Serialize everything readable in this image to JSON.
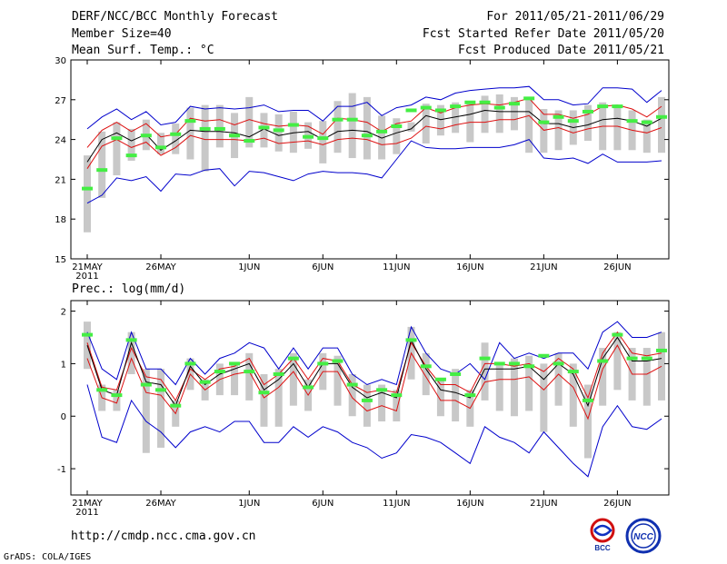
{
  "header": {
    "title": "DERF/NCC/BCC Monthly Forecast",
    "member_size": "Member Size=40",
    "variable": "Mean Surf. Temp.: °C",
    "period": "For 2011/05/21-2011/06/29",
    "start_date": "Fcst Started Refer Date 2011/05/20",
    "produced_date": "Fcst Produced Date 2011/05/21"
  },
  "panel2_label": "Prec.: log(mm/d)",
  "url": "http://cmdp.ncc.cma.gov.cn",
  "footer": "GrADS: COLA/IGES",
  "logos": {
    "bcc": "BCC",
    "ncc": "NCC"
  },
  "colors": {
    "box": "#c8c8c8",
    "obs": "#44ee44",
    "mean": "#000000",
    "inner": "#dd1111",
    "outer": "#0000cc"
  },
  "chart_data": [
    {
      "type": "line",
      "title": "Mean Surf. Temp.: °C",
      "xlabel": "",
      "ylabel": "",
      "ylim": [
        15,
        30
      ],
      "yticks": [
        "15",
        "18",
        "21",
        "24",
        "27",
        "30"
      ],
      "xticks": [
        {
          "label": "21MAY",
          "sub": "2011",
          "day": 1
        },
        {
          "label": "26MAY",
          "sub": "",
          "day": 6
        },
        {
          "label": "1JUN",
          "sub": "",
          "day": 12
        },
        {
          "label": "6JUN",
          "sub": "",
          "day": 17
        },
        {
          "label": "11JUN",
          "sub": "",
          "day": 22
        },
        {
          "label": "16JUN",
          "sub": "",
          "day": 27
        },
        {
          "label": "21JUN",
          "sub": "",
          "day": 32
        },
        {
          "label": "26JUN",
          "sub": "",
          "day": 37
        }
      ],
      "days": 40,
      "series": [
        {
          "name": "max",
          "values": [
            24.8,
            25.7,
            26.3,
            25.5,
            26.1,
            25.1,
            25.3,
            26.5,
            26.3,
            26.4,
            26.3,
            26.4,
            26.6,
            26.1,
            26.2,
            26.2,
            25.4,
            26.5,
            26.5,
            26.8,
            25.8,
            26.4,
            26.6,
            27.2,
            27.0,
            27.5,
            27.7,
            27.8,
            27.9,
            27.9,
            28.0,
            27.0,
            27.0,
            26.6,
            26.7,
            27.9,
            27.9,
            27.8,
            26.8,
            27.7
          ]
        },
        {
          "name": "upper",
          "values": [
            23.4,
            24.7,
            25.3,
            24.6,
            25.2,
            24.2,
            24.4,
            25.6,
            25.4,
            25.5,
            25.1,
            25.5,
            25.2,
            25.0,
            25.1,
            25.0,
            24.4,
            25.6,
            25.5,
            25.3,
            24.6,
            25.2,
            25.4,
            26.4,
            26.0,
            26.4,
            26.6,
            26.7,
            26.6,
            26.8,
            27.1,
            25.9,
            25.9,
            25.6,
            25.9,
            26.5,
            26.6,
            26.3,
            25.7,
            26.5
          ]
        },
        {
          "name": "mean",
          "values": [
            22.3,
            24.0,
            24.5,
            23.9,
            24.4,
            23.2,
            23.9,
            24.7,
            24.6,
            24.6,
            24.5,
            24.2,
            24.8,
            24.3,
            24.5,
            24.6,
            24.0,
            24.6,
            24.7,
            24.6,
            24.1,
            24.5,
            24.8,
            25.8,
            25.5,
            25.7,
            25.9,
            26.2,
            26.1,
            26.1,
            26.1,
            25.2,
            25.2,
            24.9,
            25.1,
            25.5,
            25.6,
            25.4,
            25.0,
            25.6
          ]
        },
        {
          "name": "lower",
          "values": [
            21.8,
            23.5,
            24.0,
            23.4,
            23.8,
            22.8,
            23.4,
            24.3,
            24.0,
            24.0,
            24.0,
            23.9,
            24.1,
            23.7,
            23.8,
            23.9,
            23.6,
            24.0,
            24.1,
            24.0,
            23.6,
            23.7,
            24.1,
            25.0,
            24.8,
            25.1,
            25.3,
            25.3,
            25.5,
            25.5,
            25.8,
            24.7,
            24.9,
            24.5,
            24.8,
            25.0,
            25.0,
            24.7,
            24.5,
            24.9
          ]
        },
        {
          "name": "min",
          "values": [
            19.2,
            19.8,
            21.1,
            20.9,
            21.2,
            20.1,
            21.4,
            21.3,
            21.7,
            21.8,
            20.5,
            21.6,
            21.5,
            21.2,
            20.9,
            21.4,
            21.6,
            21.5,
            21.5,
            21.4,
            21.1,
            22.5,
            23.9,
            23.4,
            23.3,
            23.3,
            23.4,
            23.4,
            23.4,
            23.6,
            24.0,
            22.6,
            22.5,
            22.6,
            22.2,
            22.9,
            22.3,
            22.3,
            22.3,
            22.4
          ]
        },
        {
          "name": "observed",
          "values": [
            20.3,
            21.7,
            24.1,
            22.8,
            24.3,
            23.4,
            24.4,
            25.4,
            24.8,
            24.8,
            24.3,
            23.9,
            24.9,
            24.7,
            25.1,
            24.2,
            24.1,
            25.5,
            25.5,
            24.3,
            24.6,
            25.0,
            26.2,
            26.4,
            26.2,
            26.5,
            26.8,
            26.8,
            26.4,
            26.7,
            27.1,
            25.3,
            25.7,
            25.4,
            26.1,
            26.5,
            26.5,
            25.4,
            25.3,
            25.7
          ]
        }
      ],
      "box_high": [
        22.8,
        24.6,
        25.3,
        24.8,
        25.5,
        24.5,
        25.2,
        26.4,
        26.6,
        26.6,
        26.0,
        27.2,
        26.0,
        25.9,
        26.1,
        25.3,
        25.4,
        26.9,
        27.5,
        27.2,
        25.8,
        25.6,
        25.3,
        26.7,
        26.6,
        26.8,
        26.8,
        27.3,
        27.4,
        27.2,
        27.2,
        26.3,
        26.2,
        26.2,
        26.6,
        26.8,
        26.5,
        26.2,
        25.5,
        27.2
      ],
      "box_low": [
        17.0,
        19.6,
        21.3,
        22.4,
        23.2,
        22.9,
        22.9,
        22.5,
        21.6,
        23.4,
        22.6,
        23.4,
        23.4,
        23.1,
        23.0,
        23.3,
        22.2,
        23.0,
        22.6,
        22.5,
        22.5,
        22.9,
        24.6,
        23.7,
        24.3,
        24.5,
        23.8,
        24.5,
        24.5,
        24.7,
        23.0,
        23.0,
        23.2,
        23.6,
        23.9,
        23.2,
        23.2,
        23.2,
        23.0,
        23.0
      ]
    },
    {
      "type": "line",
      "title": "Prec.: log(mm/d)",
      "xlabel": "",
      "ylabel": "",
      "ylim": [
        -1.5,
        2.2
      ],
      "yticks": [
        "-1",
        "0",
        "1",
        "2"
      ],
      "ytick_values": [
        -1,
        0,
        1,
        2
      ],
      "xticks": [
        {
          "label": "21MAY",
          "sub": "2011",
          "day": 1
        },
        {
          "label": "26MAY",
          "sub": "",
          "day": 6
        },
        {
          "label": "1JUN",
          "sub": "",
          "day": 12
        },
        {
          "label": "6JUN",
          "sub": "",
          "day": 17
        },
        {
          "label": "11JUN",
          "sub": "",
          "day": 22
        },
        {
          "label": "16JUN",
          "sub": "",
          "day": 27
        },
        {
          "label": "21JUN",
          "sub": "",
          "day": 32
        },
        {
          "label": "26JUN",
          "sub": "",
          "day": 37
        }
      ],
      "days": 40,
      "series": [
        {
          "name": "max",
          "values": [
            1.6,
            0.9,
            0.7,
            1.6,
            0.9,
            0.9,
            0.6,
            1.1,
            0.8,
            1.1,
            1.2,
            1.4,
            1.3,
            0.9,
            1.3,
            0.9,
            1.3,
            1.3,
            0.8,
            0.6,
            0.7,
            0.6,
            1.7,
            1.2,
            0.9,
            0.8,
            1.0,
            0.7,
            1.4,
            1.1,
            1.2,
            1.1,
            1.2,
            1.2,
            0.9,
            1.6,
            1.8,
            1.5,
            1.5,
            1.6
          ]
        },
        {
          "name": "upper",
          "values": [
            1.4,
            0.55,
            0.5,
            1.3,
            0.75,
            0.7,
            0.3,
            0.9,
            0.7,
            0.9,
            0.95,
            1.1,
            0.6,
            0.8,
            1.1,
            0.7,
            1.1,
            1.05,
            0.6,
            0.45,
            0.5,
            0.45,
            1.4,
            0.95,
            0.6,
            0.6,
            0.45,
            1.0,
            1.0,
            0.95,
            1.0,
            0.85,
            1.1,
            0.9,
            0.35,
            1.2,
            1.6,
            1.2,
            1.15,
            1.2
          ]
        },
        {
          "name": "mean",
          "values": [
            1.35,
            0.5,
            0.4,
            1.4,
            0.65,
            0.6,
            0.2,
            0.95,
            0.6,
            0.8,
            0.9,
            1.0,
            0.5,
            0.7,
            1.0,
            0.55,
            1.0,
            1.0,
            0.55,
            0.35,
            0.45,
            0.35,
            1.45,
            0.9,
            0.5,
            0.45,
            0.35,
            0.9,
            0.9,
            0.9,
            0.95,
            0.7,
            1.0,
            0.8,
            0.2,
            1.1,
            1.5,
            1.05,
            1.05,
            1.1
          ]
        },
        {
          "name": "lower",
          "values": [
            1.1,
            0.35,
            0.25,
            1.1,
            0.45,
            0.4,
            0.05,
            0.8,
            0.5,
            0.7,
            0.8,
            0.85,
            0.35,
            0.55,
            0.85,
            0.4,
            0.85,
            0.85,
            0.35,
            0.1,
            0.2,
            0.1,
            1.2,
            0.75,
            0.3,
            0.3,
            0.15,
            0.65,
            0.7,
            0.7,
            0.75,
            0.5,
            0.8,
            0.55,
            -0.05,
            0.9,
            1.35,
            0.8,
            0.8,
            0.95
          ]
        },
        {
          "name": "min",
          "values": [
            0.6,
            -0.4,
            -0.5,
            0.3,
            -0.1,
            -0.3,
            -0.6,
            -0.3,
            -0.2,
            -0.3,
            -0.1,
            -0.1,
            -0.5,
            -0.5,
            -0.2,
            -0.4,
            -0.2,
            -0.3,
            -0.5,
            -0.6,
            -0.8,
            -0.7,
            -0.35,
            -0.4,
            -0.5,
            -0.7,
            -0.9,
            -0.2,
            -0.4,
            -0.5,
            -0.7,
            -0.3,
            -0.6,
            -0.9,
            -1.15,
            -0.2,
            0.2,
            -0.2,
            -0.25,
            -0.05
          ]
        },
        {
          "name": "observed",
          "values": [
            1.55,
            0.5,
            0.4,
            1.45,
            0.6,
            0.5,
            0.2,
            1.0,
            0.65,
            0.85,
            1.0,
            0.85,
            0.45,
            0.8,
            1.1,
            0.55,
            1.0,
            1.05,
            0.6,
            0.3,
            0.5,
            0.4,
            1.45,
            0.95,
            0.7,
            0.8,
            0.4,
            1.1,
            1.0,
            1.0,
            0.95,
            1.15,
            1.0,
            0.85,
            0.3,
            1.05,
            1.55,
            1.1,
            1.1,
            1.25
          ]
        }
      ],
      "box_high": [
        1.8,
        0.6,
        0.5,
        1.6,
        0.9,
        0.9,
        0.3,
        1.1,
        0.7,
        1.0,
        1.0,
        1.2,
        0.8,
        0.9,
        1.2,
        0.7,
        1.2,
        1.15,
        0.8,
        0.6,
        0.6,
        0.5,
        1.7,
        1.2,
        0.7,
        0.9,
        0.5,
        1.4,
        1.0,
        1.1,
        1.15,
        1.0,
        1.2,
        1.0,
        0.6,
        1.3,
        1.6,
        1.3,
        1.3,
        1.6
      ],
      "box_low": [
        0.9,
        0.1,
        0.1,
        0.8,
        -0.7,
        -0.6,
        -0.2,
        0.5,
        0.3,
        0.4,
        0.4,
        0.3,
        -0.2,
        -0.2,
        0.2,
        0.1,
        0.5,
        0.2,
        0.0,
        -0.2,
        -0.1,
        -0.1,
        0.7,
        0.4,
        0.0,
        -0.1,
        -0.2,
        0.3,
        0.1,
        0.0,
        0.1,
        -0.3,
        0.2,
        -0.2,
        -0.8,
        0.2,
        0.5,
        0.3,
        0.2,
        0.3
      ]
    }
  ]
}
